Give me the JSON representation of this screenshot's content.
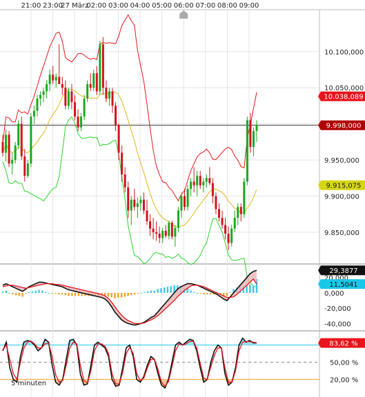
{
  "chart_data": {
    "type": "candlestick",
    "timeframe_label": "5 minuten",
    "x_tick_labels": [
      "21:00",
      "23:00",
      "27 März",
      "02:00",
      "03:00",
      "04:00",
      "05:00",
      "06:00",
      "07:00",
      "08:00",
      "09:00"
    ],
    "price_panel": {
      "y_ticks": [
        "10.100,000",
        "10.050,000",
        "10.000,000",
        "9.950,000",
        "9.900,000",
        "9.850,000"
      ],
      "y_tick_values": [
        10100,
        10050,
        10000,
        9950,
        9900,
        9850
      ],
      "ylim": [
        9807,
        10158
      ],
      "horizontal_line": 9998,
      "badges": [
        {
          "text": "10.038,089",
          "value": 10038.089,
          "color": "#e8141c",
          "text_color": "#ffffff"
        },
        {
          "text": "9.998,000",
          "value": 9998,
          "color": "#b00000",
          "text_color": "#ffffff"
        },
        {
          "text": "9.915,075",
          "value": 9915.075,
          "color": "#d6d618",
          "text_color": "#222222"
        }
      ],
      "candles_ohlc": [
        [
          9975,
          9985,
          9955,
          9960
        ],
        [
          9960,
          9992,
          9948,
          9985
        ],
        [
          9985,
          9990,
          9940,
          9945
        ],
        [
          9945,
          9960,
          9930,
          9950
        ],
        [
          9950,
          9975,
          9945,
          9970
        ],
        [
          9970,
          10005,
          9965,
          10000
        ],
        [
          10000,
          10010,
          9950,
          9955
        ],
        [
          9955,
          9965,
          9920,
          9928
        ],
        [
          9928,
          9950,
          9925,
          9945
        ],
        [
          9945,
          10015,
          9940,
          10010
        ],
        [
          10010,
          10025,
          10000,
          10018
        ],
        [
          10018,
          10040,
          10010,
          10035
        ],
        [
          10035,
          10045,
          10025,
          10040
        ],
        [
          10040,
          10050,
          10030,
          10045
        ],
        [
          10045,
          10060,
          10035,
          10055
        ],
        [
          10055,
          10075,
          10045,
          10068
        ],
        [
          10068,
          10080,
          10055,
          10060
        ],
        [
          10060,
          10070,
          10050,
          10065
        ],
        [
          10065,
          10110,
          10060,
          10055
        ],
        [
          10055,
          10065,
          10040,
          10050
        ],
        [
          10050,
          10060,
          10020,
          10025
        ],
        [
          10025,
          10050,
          10020,
          10045
        ],
        [
          10045,
          10055,
          10020,
          10030
        ],
        [
          10030,
          10040,
          10005,
          10010
        ],
        [
          10010,
          10020,
          9990,
          9995
        ],
        [
          9995,
          10015,
          9990,
          10010
        ],
        [
          10010,
          10040,
          10005,
          10035
        ],
        [
          10035,
          10060,
          10030,
          10055
        ],
        [
          10055,
          10070,
          10045,
          10050
        ],
        [
          10050,
          10075,
          10045,
          10070
        ],
        [
          10070,
          10080,
          10040,
          10045
        ],
        [
          10045,
          10115,
          10040,
          10110
        ],
        [
          10110,
          10120,
          10040,
          10050
        ],
        [
          10050,
          10060,
          10030,
          10035
        ],
        [
          10035,
          10050,
          10025,
          10045
        ],
        [
          10045,
          10050,
          10015,
          10025
        ],
        [
          10025,
          10030,
          9990,
          9998
        ],
        [
          9998,
          10000,
          9950,
          9960
        ],
        [
          9960,
          9970,
          9920,
          9930
        ],
        [
          9930,
          9940,
          9905,
          9912
        ],
        [
          9912,
          9920,
          9870,
          9880
        ],
        [
          9880,
          9900,
          9860,
          9895
        ],
        [
          9895,
          9910,
          9880,
          9885
        ],
        [
          9885,
          9898,
          9870,
          9890
        ],
        [
          9890,
          9900,
          9880,
          9895
        ],
        [
          9895,
          9905,
          9875,
          9880
        ],
        [
          9880,
          9895,
          9860,
          9865
        ],
        [
          9865,
          9875,
          9845,
          9855
        ],
        [
          9855,
          9870,
          9840,
          9850
        ],
        [
          9850,
          9865,
          9838,
          9848
        ],
        [
          9848,
          9858,
          9835,
          9842
        ],
        [
          9842,
          9856,
          9835,
          9852
        ],
        [
          9852,
          9860,
          9842,
          9845
        ],
        [
          9845,
          9866,
          9840,
          9863
        ],
        [
          9863,
          9866,
          9840,
          9844
        ],
        [
          9844,
          9860,
          9830,
          9856
        ],
        [
          9856,
          9885,
          9850,
          9880
        ],
        [
          9880,
          9905,
          9870,
          9900
        ],
        [
          9900,
          9910,
          9880,
          9885
        ],
        [
          9885,
          9915,
          9880,
          9910
        ],
        [
          9910,
          9925,
          9900,
          9920
        ],
        [
          9920,
          9940,
          9905,
          9915
        ],
        [
          9915,
          9935,
          9900,
          9928
        ],
        [
          9928,
          9935,
          9910,
          9915
        ],
        [
          9915,
          9925,
          9905,
          9920
        ],
        [
          9920,
          9930,
          9912,
          9925
        ],
        [
          9925,
          9940,
          9915,
          9918
        ],
        [
          9918,
          9925,
          9890,
          9900
        ],
        [
          9900,
          9905,
          9875,
          9882
        ],
        [
          9882,
          9890,
          9865,
          9870
        ],
        [
          9870,
          9880,
          9855,
          9860
        ],
        [
          9860,
          9870,
          9840,
          9848
        ],
        [
          9848,
          9858,
          9825,
          9835
        ],
        [
          9835,
          9860,
          9830,
          9855
        ],
        [
          9855,
          9880,
          9850,
          9870
        ],
        [
          9870,
          9890,
          9860,
          9885
        ],
        [
          9885,
          9890,
          9865,
          9875
        ],
        [
          9875,
          9925,
          9870,
          9920
        ],
        [
          9920,
          10010,
          9915,
          10005
        ],
        [
          10005,
          10015,
          9960,
          9968
        ],
        [
          9968,
          9995,
          9955,
          9990
        ],
        [
          9990,
          10005,
          9975,
          9998
        ]
      ]
    },
    "macd_panel": {
      "y_ticks": [
        "20,000",
        "0,000",
        "-20,000",
        "-40,000"
      ],
      "y_tick_values": [
        20,
        0,
        -20,
        -40
      ],
      "ylim": [
        -45,
        35
      ],
      "badges": [
        {
          "text": "29,3877",
          "value": 29.3877,
          "color": "#111111",
          "text_color": "#ffffff"
        },
        {
          "text": "11,5041",
          "value": 11.5041,
          "color": "#18c8e8",
          "text_color": "#111111"
        }
      ],
      "macd_values": [
        10,
        12,
        10,
        8,
        6,
        4,
        2,
        5,
        8,
        10,
        12,
        14,
        14,
        13,
        12,
        11,
        10,
        9,
        8,
        6,
        4,
        3,
        2,
        1,
        0,
        -1,
        -2,
        -3,
        -4,
        -5,
        -6,
        -8,
        -12,
        -18,
        -25,
        -30,
        -35,
        -38,
        -40,
        -41,
        -42,
        -41,
        -40,
        -38,
        -35,
        -32,
        -30,
        -25,
        -20,
        -15,
        -10,
        -5,
        0,
        5,
        8,
        10,
        12,
        12,
        11,
        10,
        8,
        6,
        4,
        2,
        0,
        -2,
        -5,
        -8,
        -10,
        -5,
        0,
        5,
        10,
        15,
        20,
        25,
        28,
        29.3877
      ],
      "signal_values": [
        8,
        9,
        10,
        10,
        9,
        8,
        7,
        6,
        7,
        8,
        9,
        10,
        11,
        12,
        12,
        12,
        11,
        11,
        10,
        9,
        8,
        7,
        6,
        5,
        4,
        3,
        2,
        1,
        0,
        -1,
        -2,
        -4,
        -7,
        -12,
        -18,
        -24,
        -29,
        -33,
        -36,
        -38,
        -40,
        -40,
        -40,
        -39,
        -37,
        -35,
        -33,
        -30,
        -26,
        -22,
        -18,
        -14,
        -10,
        -5,
        -1,
        3,
        6,
        9,
        10,
        10,
        9,
        8,
        6,
        4,
        2,
        0,
        -2,
        -4,
        -6,
        -6,
        -5,
        -2,
        2,
        6,
        10,
        14,
        18,
        11.5041
      ],
      "histogram": [
        2,
        3,
        0,
        -2,
        -3,
        -4,
        -5,
        -1,
        1,
        2,
        3,
        4,
        3,
        1,
        0,
        -1,
        -1,
        -2,
        -2,
        -3,
        -4,
        -4,
        -4,
        -4,
        -4,
        -4,
        -4,
        -4,
        -4,
        -4,
        -4,
        -4,
        -5,
        -6,
        -7,
        -6,
        -6,
        -5,
        -4,
        -3,
        -2,
        -1,
        0,
        1,
        2,
        3,
        3,
        5,
        6,
        7,
        8,
        9,
        10,
        10,
        9,
        7,
        6,
        3,
        1,
        0,
        -1,
        -2,
        -2,
        -2,
        -2,
        -2,
        -3,
        -4,
        -4,
        1,
        5,
        7,
        8,
        9,
        10,
        11,
        10,
        18
      ]
    },
    "stochastic_panel": {
      "y_ticks": [
        "50,00 %",
        "20,00 %"
      ],
      "y_tick_values": [
        50,
        20
      ],
      "ylim": [
        0,
        100
      ],
      "reference_lines": [
        80,
        50,
        20
      ],
      "badges": [
        {
          "text": "83,62 %",
          "value": 83.62,
          "color": "#e8141c",
          "text_color": "#ffffff"
        }
      ],
      "k_values": [
        70,
        85,
        40,
        20,
        15,
        60,
        85,
        88,
        86,
        80,
        70,
        75,
        90,
        85,
        45,
        15,
        10,
        20,
        55,
        88,
        90,
        80,
        30,
        10,
        12,
        45,
        80,
        85,
        80,
        75,
        60,
        20,
        8,
        10,
        40,
        75,
        80,
        60,
        20,
        15,
        25,
        45,
        60,
        55,
        30,
        10,
        5,
        20,
        50,
        80,
        85,
        80,
        85,
        90,
        88,
        70,
        40,
        15,
        20,
        50,
        70,
        80,
        75,
        30,
        10,
        15,
        40,
        80,
        92,
        85,
        88,
        84,
        83.62
      ],
      "d_values": [
        72,
        80,
        55,
        30,
        20,
        50,
        75,
        85,
        87,
        82,
        75,
        75,
        82,
        83,
        60,
        28,
        15,
        18,
        45,
        75,
        85,
        82,
        45,
        18,
        14,
        35,
        70,
        82,
        82,
        78,
        65,
        30,
        12,
        12,
        32,
        65,
        76,
        65,
        30,
        18,
        22,
        40,
        55,
        55,
        38,
        15,
        8,
        16,
        42,
        70,
        82,
        80,
        82,
        86,
        87,
        75,
        48,
        22,
        20,
        42,
        62,
        75,
        75,
        40,
        15,
        15,
        35,
        70,
        85,
        86,
        86,
        85,
        84
      ]
    }
  }
}
